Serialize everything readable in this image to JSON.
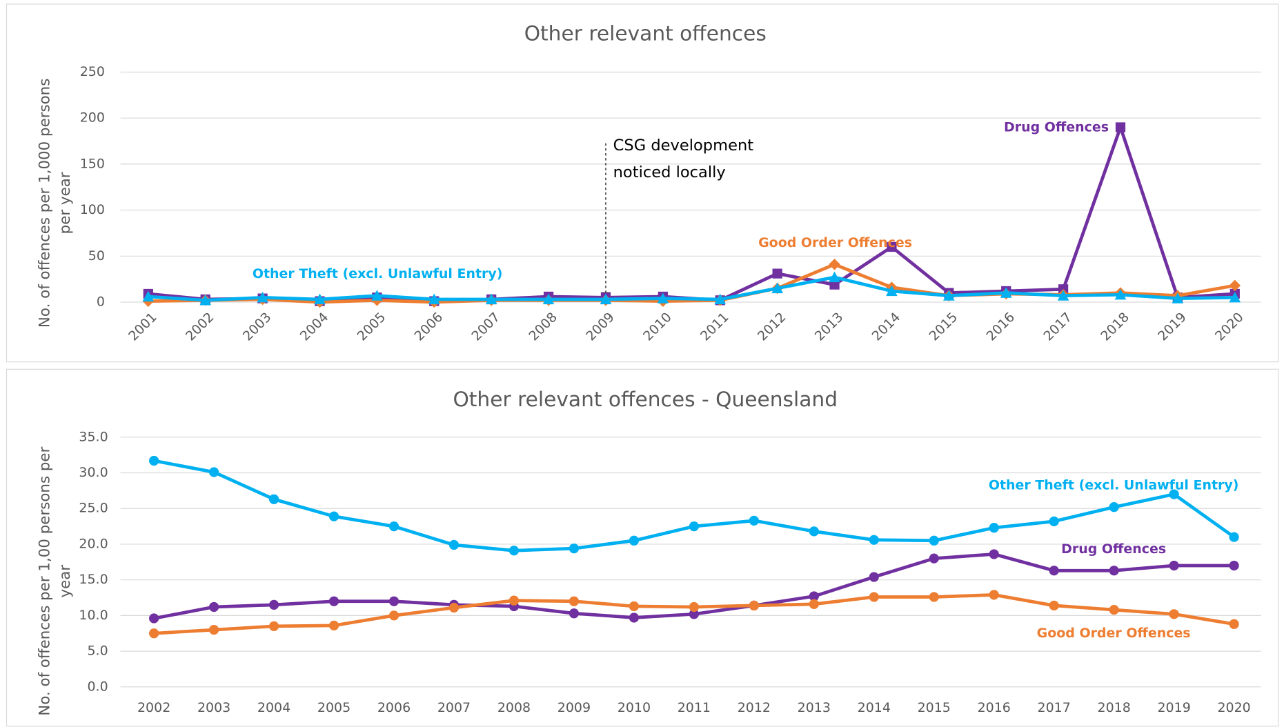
{
  "chart_data": [
    {
      "type": "line",
      "title": "Other relevant offences",
      "y_label": [
        "No. of offences per 1,000 persons",
        "per year"
      ],
      "categories": [
        "2001",
        "2002",
        "2003",
        "2004",
        "2005",
        "2006",
        "2007",
        "2008",
        "2009",
        "2010",
        "2011",
        "2012",
        "2013",
        "2014",
        "2015",
        "2016",
        "2017",
        "2018",
        "2019",
        "2020"
      ],
      "ylim": [
        0,
        250
      ],
      "yticks": [
        0,
        50,
        100,
        150,
        200,
        250
      ],
      "grid": true,
      "annotation": {
        "category": "2009",
        "lines": [
          "CSG development",
          "noticed locally"
        ]
      },
      "series": [
        {
          "name": "Drug Offences",
          "color": "#7030a0",
          "marker": "square",
          "values": [
            9,
            3,
            4,
            1,
            5,
            1,
            3,
            6,
            5,
            6,
            2,
            31,
            19,
            60,
            10,
            12,
            14,
            190,
            5,
            9
          ]
        },
        {
          "name": "Good Order Offences",
          "color": "#ed7d31",
          "marker": "diamond",
          "values": [
            1,
            2,
            3,
            0,
            2,
            0,
            2,
            2,
            2,
            1,
            2,
            15,
            41,
            16,
            7,
            9,
            8,
            10,
            7,
            18
          ]
        },
        {
          "name": "Other Theft (excl. Unlawful Entry)",
          "color": "#00b0f0",
          "marker": "triangle",
          "values": [
            6,
            2,
            5,
            3,
            7,
            3,
            3,
            3,
            3,
            4,
            3,
            15,
            27,
            12,
            7,
            10,
            7,
            8,
            4,
            5
          ]
        }
      ]
    },
    {
      "type": "line",
      "title": "Other relevant offences - Queensland",
      "y_label": [
        "No. of offences per 1,00 persons per",
        "year"
      ],
      "categories": [
        "2002",
        "2003",
        "2004",
        "2005",
        "2006",
        "2007",
        "2008",
        "2009",
        "2010",
        "2011",
        "2012",
        "2013",
        "2014",
        "2015",
        "2016",
        "2017",
        "2018",
        "2019",
        "2020"
      ],
      "ylim": [
        0,
        35
      ],
      "yticks": [
        {
          "value": 0,
          "label": "0.0"
        },
        {
          "value": 5,
          "label": "5.0"
        },
        {
          "value": 10,
          "label": "10.0"
        },
        {
          "value": 15,
          "label": "15.0"
        },
        {
          "value": 20,
          "label": "20.0"
        },
        {
          "value": 25,
          "label": "25.0"
        },
        {
          "value": 30,
          "label": "30.0"
        },
        {
          "value": 35,
          "label": "35.0"
        }
      ],
      "grid": true,
      "series": [
        {
          "name": "Other Theft (excl. Unlawful Entry)",
          "color": "#00b0f0",
          "marker": "circle",
          "values": [
            31.7,
            30.1,
            26.3,
            23.9,
            22.5,
            19.9,
            19.1,
            19.4,
            20.5,
            22.5,
            23.3,
            21.8,
            20.6,
            20.5,
            22.3,
            23.2,
            25.2,
            27.0,
            21.0
          ]
        },
        {
          "name": "Drug Offences",
          "color": "#7030a0",
          "marker": "circle",
          "values": [
            9.6,
            11.2,
            11.5,
            12.0,
            12.0,
            11.5,
            11.3,
            10.3,
            9.7,
            10.2,
            11.4,
            12.7,
            15.4,
            18.0,
            18.6,
            16.3,
            16.3,
            17.0,
            17.0
          ]
        },
        {
          "name": "Good Order Offences",
          "color": "#ed7d31",
          "marker": "circle",
          "values": [
            7.5,
            8.0,
            8.5,
            8.6,
            10.0,
            11.1,
            12.1,
            12.0,
            11.3,
            11.2,
            11.4,
            11.6,
            12.6,
            12.6,
            12.9,
            11.4,
            10.8,
            10.2,
            8.8
          ]
        }
      ]
    }
  ]
}
